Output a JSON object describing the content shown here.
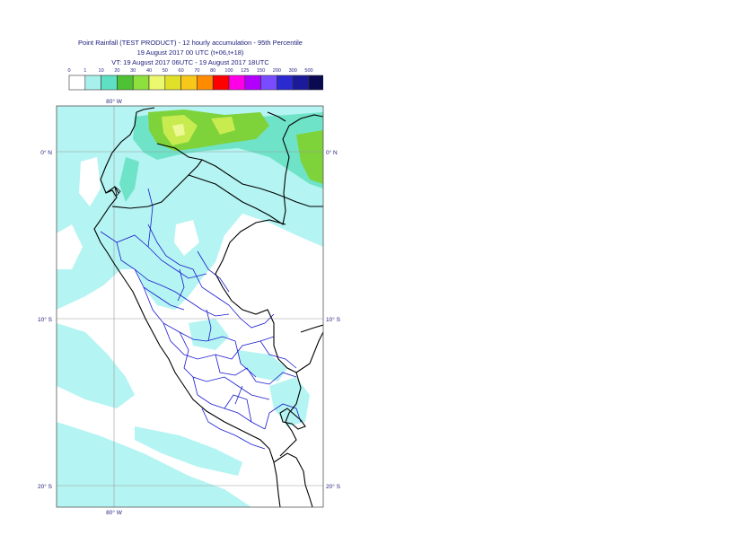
{
  "title": {
    "line1": "Point Rainfall (TEST PRODUCT) - 12 hourly accumulation - 95th Percentile",
    "line2": "19 August 2017 00 UTC (t+06,t+18)",
    "line3": "VT: 19 August 2017 06UTC - 19 August 2017 18UTC"
  },
  "legend": {
    "thresholds": [
      "0",
      "1",
      "10",
      "20",
      "30",
      "40",
      "50",
      "60",
      "70",
      "80",
      "100",
      "125",
      "150",
      "200",
      "300",
      "500"
    ],
    "colors": [
      "#ffffff",
      "#a8f0ec",
      "#5fe0c4",
      "#4ec234",
      "#8ee03e",
      "#ecf86e",
      "#e0e028",
      "#f7c71a",
      "#ff8c00",
      "#ff0000",
      "#ff00e6",
      "#b200ff",
      "#7a4cff",
      "#2a2ad0",
      "#1a1a9a",
      "#0a0a50"
    ]
  },
  "map": {
    "lon_labels": [
      "80° W",
      "80° W"
    ],
    "lat_labels": [
      "0° N",
      "0° N",
      "10° S",
      "10° S",
      "20° S",
      "20° S"
    ]
  },
  "colors": {
    "light_cyan": "#b4f4f2",
    "mid_cyan": "#6fe3c8",
    "green": "#7ed23a",
    "yellow_green": "#c8ec50",
    "coast": "#000000",
    "admin": "#1a1ad0",
    "grid": "#9a9a9a"
  }
}
